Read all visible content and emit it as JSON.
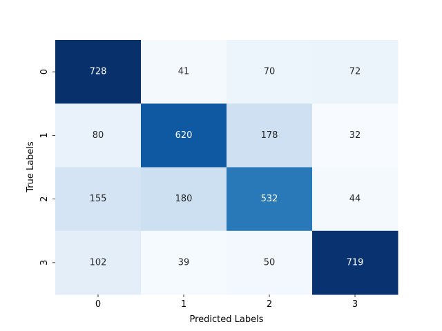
{
  "chart_data": {
    "type": "heatmap",
    "title": "",
    "xlabel": "Predicted Labels",
    "ylabel": "True Labels",
    "x_categories": [
      "0",
      "1",
      "2",
      "3"
    ],
    "y_categories": [
      "0",
      "1",
      "2",
      "3"
    ],
    "values": [
      [
        728,
        41,
        70,
        72
      ],
      [
        80,
        620,
        178,
        32
      ],
      [
        155,
        180,
        532,
        44
      ],
      [
        102,
        39,
        50,
        719
      ]
    ],
    "colormap": "Blues",
    "colorbar": false,
    "annotations": true,
    "grid": false
  }
}
